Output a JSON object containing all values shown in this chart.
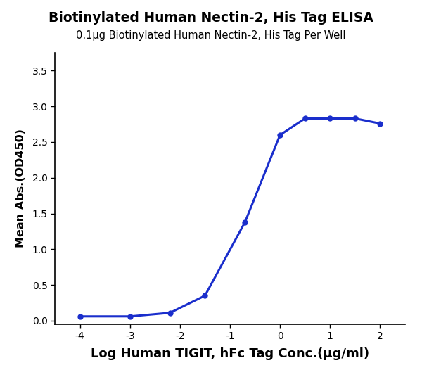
{
  "title": "Biotinylated Human Nectin-2, His Tag ELISA",
  "subtitle": "0.1μg Biotinylated Human Nectin-2, His Tag Per Well",
  "xlabel": "Log Human TIGIT, hFc Tag Conc.(μg/ml)",
  "ylabel": "Mean Abs.(OD450)",
  "title_fontsize": 13.5,
  "subtitle_fontsize": 10.5,
  "xlabel_fontsize": 13,
  "ylabel_fontsize": 11.5,
  "curve_color": "#1a2ecc",
  "dot_color": "#1a2ecc",
  "xlim": [
    -4.5,
    2.5
  ],
  "ylim": [
    -0.05,
    3.75
  ],
  "xticks": [
    -4,
    -3,
    -2,
    -1,
    0,
    1,
    2
  ],
  "yticks": [
    0.0,
    0.5,
    1.0,
    1.5,
    2.0,
    2.5,
    3.0,
    3.5
  ],
  "data_x": [
    -4.0,
    -3.0,
    -2.2,
    -1.5,
    -0.7,
    0.0,
    0.5,
    1.0,
    1.5,
    2.0
  ],
  "data_y": [
    0.06,
    0.06,
    0.11,
    0.35,
    1.38,
    2.6,
    2.83,
    2.83,
    2.83,
    2.76
  ],
  "background_color": "#ffffff",
  "line_width": 2.2,
  "dot_size": 25
}
